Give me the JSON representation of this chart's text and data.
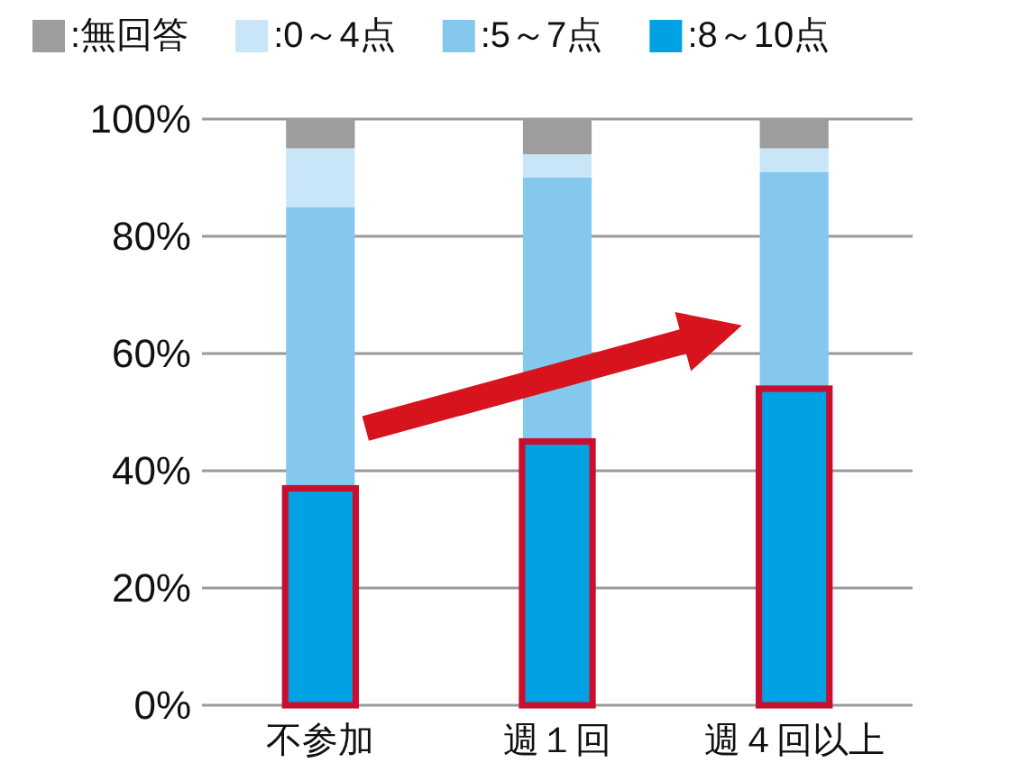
{
  "chart_data": {
    "type": "bar",
    "stacked": true,
    "categories": [
      "不参加",
      "週１回",
      "週４回以上"
    ],
    "series": [
      {
        "name": ":8～10点",
        "color": "#00a2e3",
        "values": [
          37,
          45,
          54
        ]
      },
      {
        "name": ":5～7点",
        "color": "#84c8ee",
        "values": [
          48,
          45,
          37
        ]
      },
      {
        "name": ":0～4点",
        "color": "#c9e6f8",
        "values": [
          10,
          4,
          4
        ]
      },
      {
        "name": ":無回答",
        "color": "#9d9d9d",
        "values": [
          5,
          6,
          5
        ]
      }
    ],
    "ylim": [
      0,
      100
    ],
    "yticks": [
      {
        "value": 0,
        "label": "0%"
      },
      {
        "value": 20,
        "label": "20%"
      },
      {
        "value": 40,
        "label": "40%"
      },
      {
        "value": 60,
        "label": "60%"
      },
      {
        "value": 80,
        "label": "80%"
      },
      {
        "value": 100,
        "label": "100%"
      }
    ],
    "grid": "y",
    "legend": "top"
  }
}
